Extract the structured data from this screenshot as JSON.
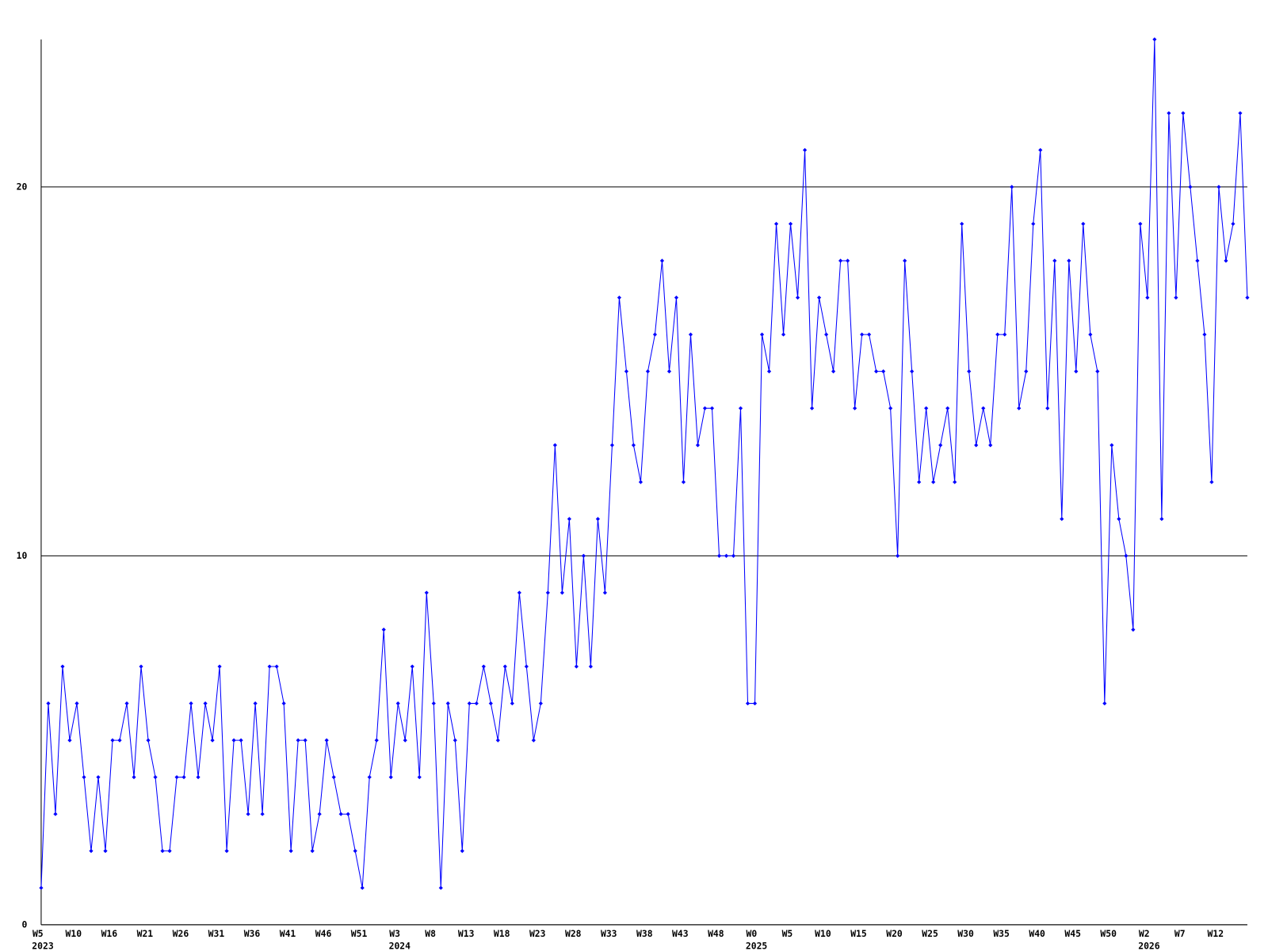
{
  "chart_data": {
    "type": "line",
    "categories": [
      "W5",
      null,
      null,
      null,
      null,
      "W10",
      null,
      null,
      null,
      null,
      "W16",
      null,
      null,
      null,
      null,
      "W21",
      null,
      null,
      null,
      null,
      "W26",
      null,
      null,
      null,
      null,
      "W31",
      null,
      null,
      null,
      null,
      "W36",
      null,
      null,
      null,
      null,
      "W41",
      null,
      null,
      null,
      null,
      "W46",
      null,
      null,
      null,
      null,
      "W51",
      null,
      null,
      null,
      null,
      "W3",
      null,
      null,
      null,
      null,
      "W8",
      null,
      null,
      null,
      null,
      "W13",
      null,
      null,
      null,
      null,
      "W18",
      null,
      null,
      null,
      null,
      "W23",
      null,
      null,
      null,
      null,
      "W28",
      null,
      null,
      null,
      null,
      "W33",
      null,
      null,
      null,
      null,
      "W38",
      null,
      null,
      null,
      null,
      "W43",
      null,
      null,
      null,
      null,
      "W48",
      null,
      null,
      null,
      null,
      "W0",
      null,
      null,
      null,
      null,
      "W5",
      null,
      null,
      null,
      null,
      "W10",
      null,
      null,
      null,
      null,
      "W15",
      null,
      null,
      null,
      null,
      "W20",
      null,
      null,
      null,
      null,
      "W25",
      null,
      null,
      null,
      null,
      "W30",
      null,
      null,
      null,
      null,
      "W35",
      null,
      null,
      null,
      null,
      "W40",
      null,
      null,
      null,
      null,
      "W45",
      null,
      null,
      null,
      null,
      "W50",
      null,
      null,
      null,
      null,
      "W2",
      null,
      null,
      null,
      null,
      "W7",
      null,
      null,
      null,
      null,
      "W12",
      null,
      null,
      null,
      null
    ],
    "year_labels": [
      "2023",
      null,
      null,
      null,
      null,
      null,
      null,
      null,
      null,
      null,
      null,
      null,
      null,
      null,
      null,
      null,
      null,
      null,
      null,
      null,
      null,
      null,
      null,
      null,
      null,
      null,
      null,
      null,
      null,
      null,
      null,
      null,
      null,
      null,
      null,
      null,
      null,
      null,
      null,
      null,
      null,
      null,
      null,
      null,
      null,
      null,
      null,
      null,
      null,
      null,
      "2024",
      null,
      null,
      null,
      null,
      null,
      null,
      null,
      null,
      null,
      null,
      null,
      null,
      null,
      null,
      null,
      null,
      null,
      null,
      null,
      null,
      null,
      null,
      null,
      null,
      null,
      null,
      null,
      null,
      null,
      null,
      null,
      null,
      null,
      null,
      null,
      null,
      null,
      null,
      null,
      null,
      null,
      null,
      null,
      null,
      null,
      null,
      null,
      null,
      null,
      "2025",
      null,
      null,
      null,
      null,
      null,
      null,
      null,
      null,
      null,
      null,
      null,
      null,
      null,
      null,
      null,
      null,
      null,
      null,
      null,
      null,
      null,
      null,
      null,
      null,
      null,
      null,
      null,
      null,
      null,
      null,
      null,
      null,
      null,
      null,
      null,
      null,
      null,
      null,
      null,
      null,
      null,
      null,
      null,
      null,
      null,
      null,
      null,
      null,
      null,
      null,
      null,
      null,
      null,
      null,
      "2026",
      null,
      null,
      null,
      null,
      null,
      null,
      null,
      null,
      null,
      null,
      null,
      null,
      null,
      null
    ],
    "series": [
      {
        "color": "#0000ff",
        "values": [
          1,
          6,
          3,
          7,
          5,
          6,
          4,
          2,
          4,
          2,
          5,
          5,
          6,
          4,
          7,
          5,
          4,
          2,
          2,
          4,
          4,
          6,
          4,
          6,
          5,
          7,
          2,
          5,
          5,
          3,
          6,
          3,
          7,
          7,
          6,
          2,
          5,
          5,
          2,
          3,
          5,
          4,
          3,
          3,
          2,
          1,
          4,
          5,
          8,
          4,
          6,
          5,
          7,
          4,
          9,
          6,
          1,
          6,
          5,
          2,
          6,
          6,
          7,
          6,
          5,
          7,
          6,
          9,
          7,
          5,
          6,
          9,
          13,
          9,
          11,
          7,
          10,
          7,
          11,
          9,
          13,
          17,
          15,
          13,
          12,
          15,
          16,
          18,
          15,
          17,
          12,
          16,
          13,
          14,
          14,
          10,
          10,
          10,
          14,
          6,
          6,
          16,
          15,
          19,
          16,
          19,
          17,
          21,
          14,
          17,
          16,
          15,
          18,
          18,
          14,
          16,
          16,
          15,
          15,
          14,
          10,
          18,
          15,
          12,
          14,
          12,
          13,
          14,
          12,
          19,
          15,
          13,
          14,
          13,
          16,
          16,
          20,
          14,
          15,
          19,
          21,
          14,
          18,
          11,
          18,
          15,
          19,
          16,
          15,
          6,
          13,
          11,
          10,
          8,
          19,
          17,
          24,
          11,
          22,
          17,
          22,
          20,
          18,
          16,
          12,
          20,
          18,
          19,
          22,
          17
        ]
      }
    ],
    "ylim": [
      0,
      24
    ],
    "yticks": [
      0,
      10,
      20
    ],
    "grid": true
  }
}
